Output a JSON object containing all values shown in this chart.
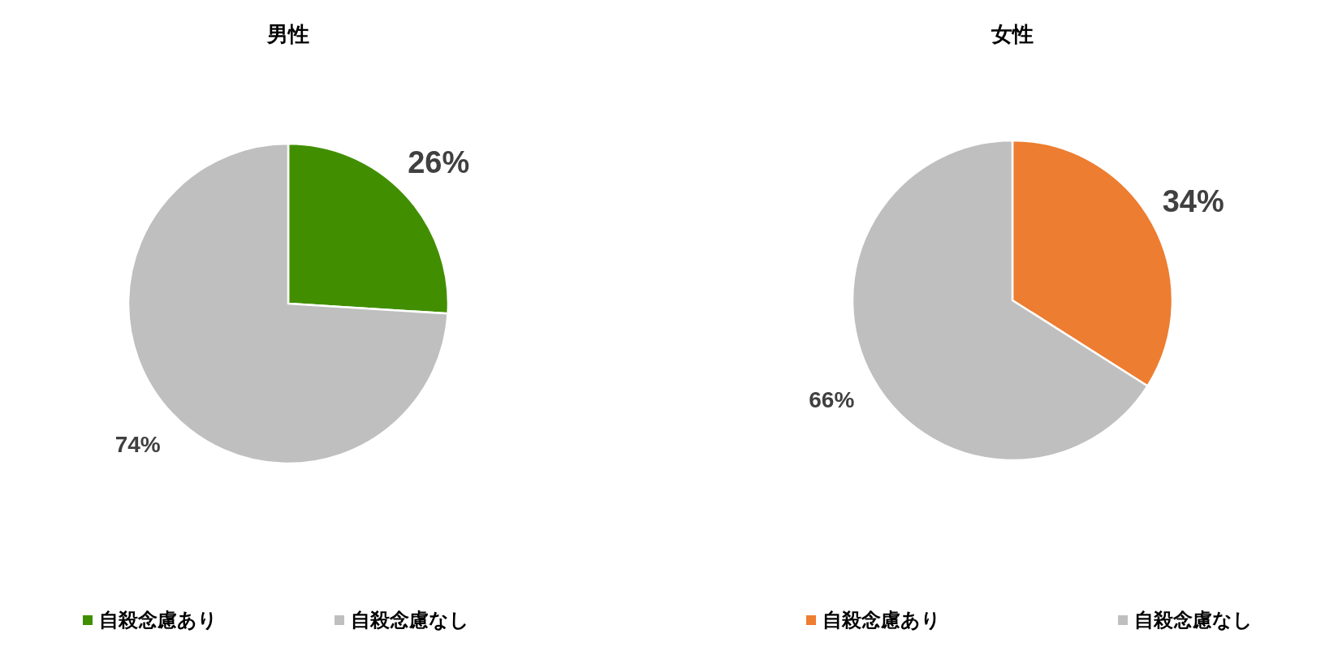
{
  "chart_data": [
    {
      "type": "pie",
      "title": "男性",
      "categories": [
        "自殺念慮あり",
        "自殺念慮なし"
      ],
      "values": [
        26,
        74
      ],
      "colors": [
        "#418f00",
        "#bfbfbf"
      ],
      "value_labels": [
        "26%",
        "74%"
      ],
      "legend": "bottom"
    },
    {
      "type": "pie",
      "title": "女性",
      "categories": [
        "自殺念慮あり",
        "自殺念慮なし"
      ],
      "values": [
        34,
        66
      ],
      "colors": [
        "#ed7d31",
        "#bfbfbf"
      ],
      "value_labels": [
        "34%",
        "66%"
      ],
      "legend": "bottom"
    }
  ]
}
